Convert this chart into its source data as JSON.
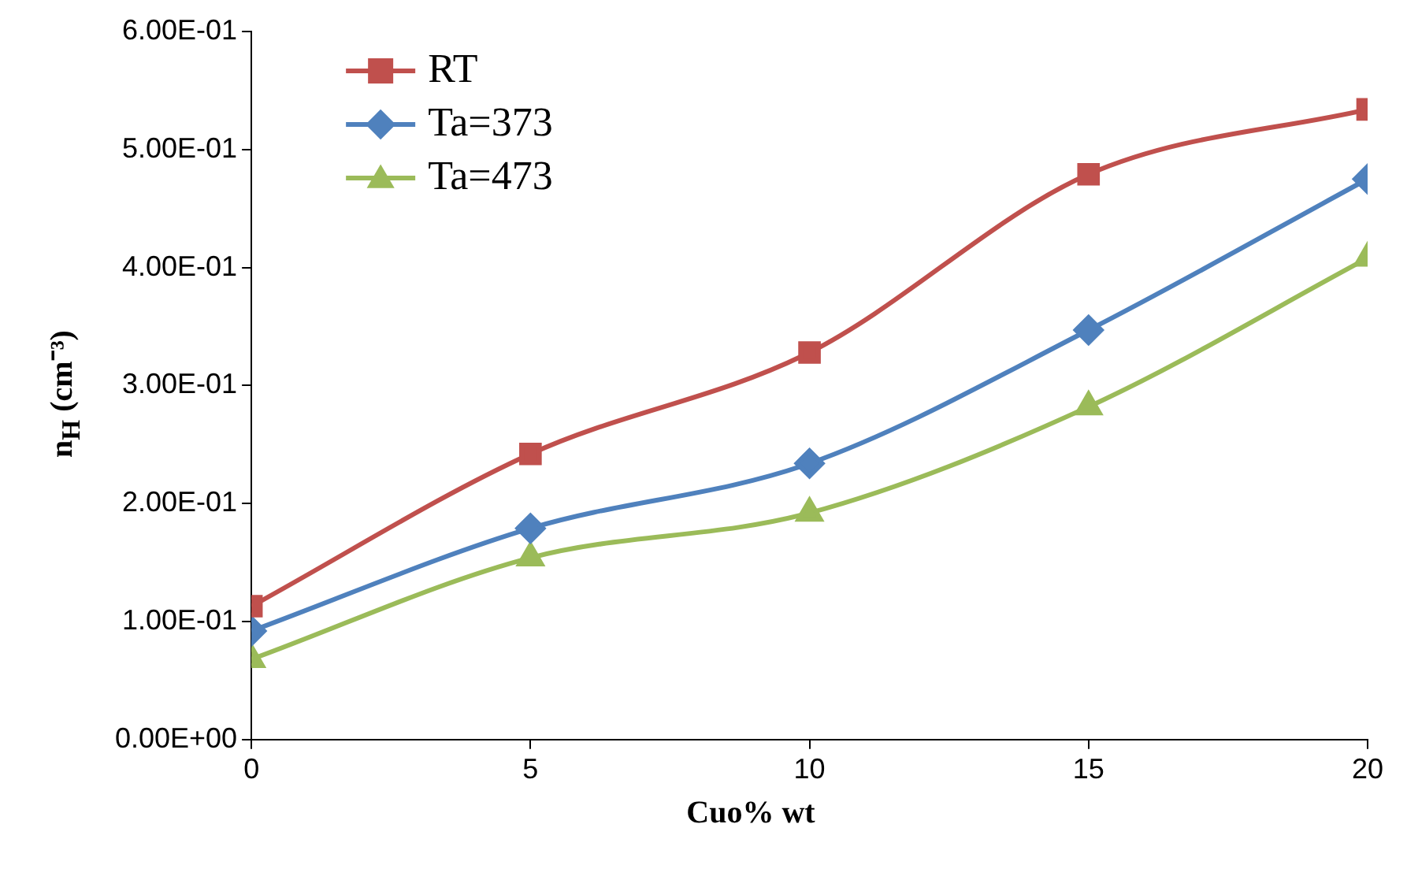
{
  "chart_data": {
    "type": "line",
    "xlabel": "Cuo% wt",
    "ylabel": "n$_{H}$ (cm⁻³)",
    "x": [
      0,
      5,
      10,
      15,
      20
    ],
    "series": [
      {
        "name": "RT",
        "color": "#c0504d",
        "marker": "square",
        "values": [
          0.113,
          0.242,
          0.328,
          0.479,
          0.534
        ]
      },
      {
        "name": "Ta=373",
        "color": "#4f81bd",
        "marker": "diamond",
        "values": [
          0.092,
          0.179,
          0.234,
          0.347,
          0.475
        ]
      },
      {
        "name": "Ta=473",
        "color": "#9bbb59",
        "marker": "triangle",
        "values": [
          0.068,
          0.154,
          0.192,
          0.282,
          0.408
        ]
      }
    ],
    "xlim": [
      0,
      20
    ],
    "xticks": [
      0,
      5,
      10,
      15,
      20
    ],
    "ylim": [
      0,
      0.6
    ],
    "yticks": [
      {
        "value": 0,
        "label": "0.00E+00"
      },
      {
        "value": 0.1,
        "label": "1.00E-01"
      },
      {
        "value": 0.2,
        "label": "2.00E-01"
      },
      {
        "value": 0.3,
        "label": "3.00E-01"
      },
      {
        "value": 0.4,
        "label": "4.00E-01"
      },
      {
        "value": 0.5,
        "label": "5.00E-01"
      },
      {
        "value": 0.6,
        "label": "6.00E-01"
      }
    ],
    "grid": false,
    "legend": "top left"
  }
}
